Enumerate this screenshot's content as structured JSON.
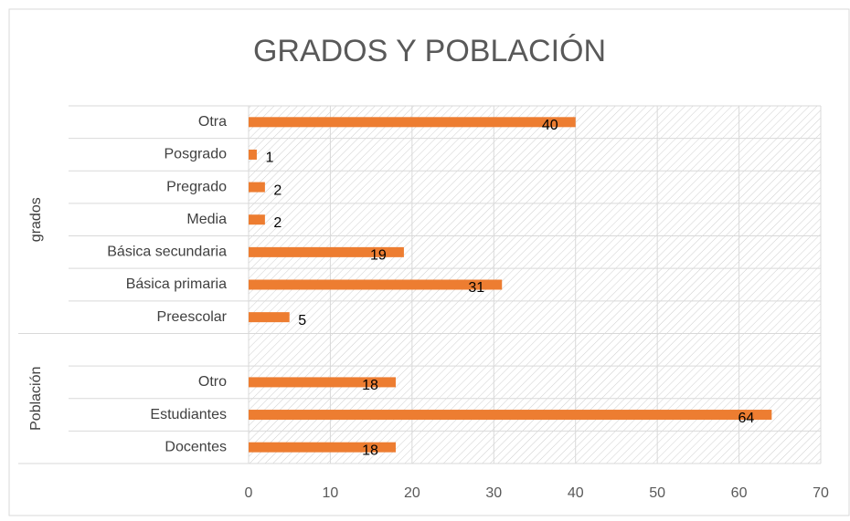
{
  "chart_data": {
    "type": "bar",
    "orientation": "horizontal",
    "title": "GRADOS Y POBLACIÓN",
    "groups": [
      {
        "name": "grados",
        "categories": [
          "Otra",
          "Posgrado",
          "Pregrado",
          "Media",
          "Básica secundaria",
          "Básica primaria",
          "Preescolar"
        ],
        "values": [
          40,
          1,
          2,
          2,
          19,
          31,
          5
        ]
      },
      {
        "name": "Población",
        "categories": [
          null,
          "Otro",
          "Estudiantes",
          "Docentes"
        ],
        "values": [
          null,
          18,
          64,
          18
        ]
      }
    ],
    "color": "#ed7d31",
    "xlim": [
      0,
      70
    ],
    "xticks": [
      0,
      10,
      20,
      30,
      40,
      50,
      60,
      70
    ],
    "grid": true,
    "data_labels": true
  }
}
